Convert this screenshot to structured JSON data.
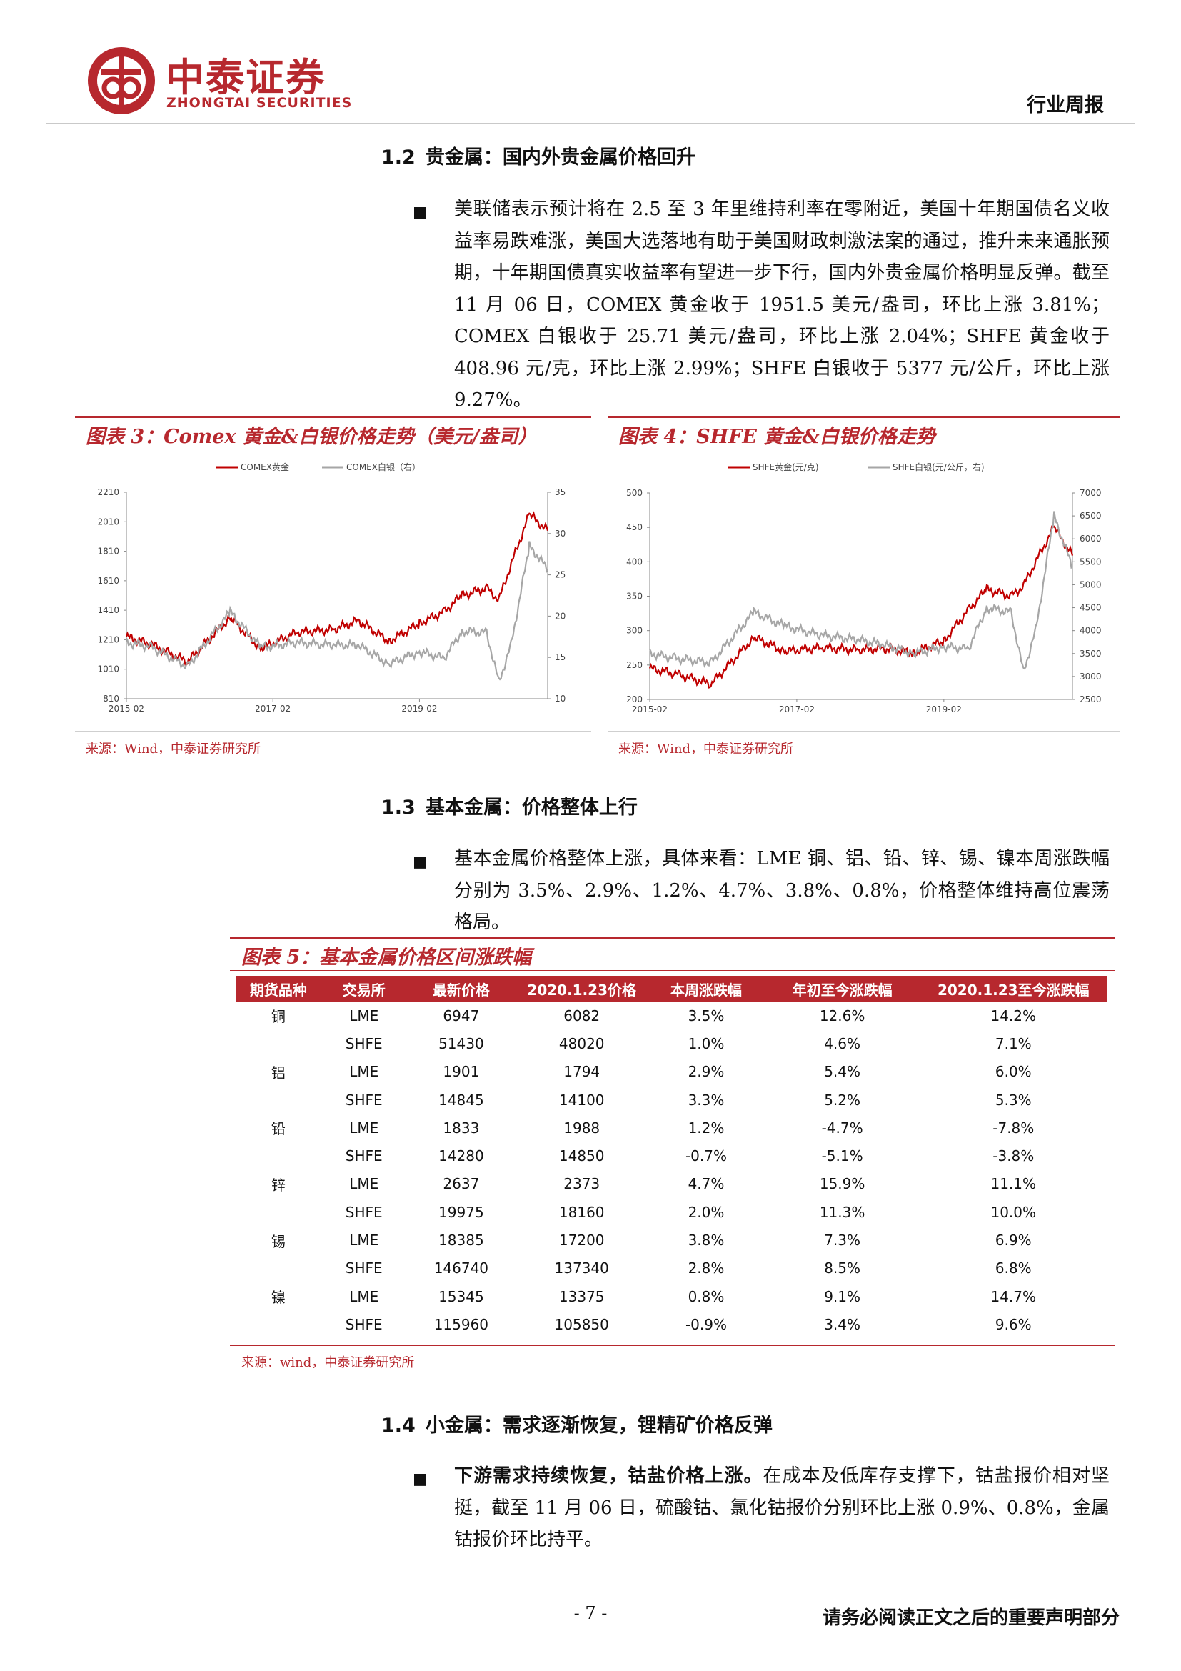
{
  "header": {
    "brand_cn": "中泰证券",
    "brand_en": "ZHONGTAI SECURITIES",
    "doc_type": "行业周报",
    "brand_color": "#b7282e"
  },
  "section_1_2": {
    "number": "1.2",
    "title": "贵金属：国内外贵金属价格回升",
    "paragraph": "美联储表示预计将在 2.5 至 3 年里维持利率在零附近，美国十年期国债名义收益率易跌难涨，美国大选落地有助于美国财政刺激法案的通过，推升未来通胀预期，十年期国债真实收益率有望进一步下行，国内外贵金属价格明显反弹。截至 11 月 06 日，COMEX 黄金收于 1951.5 美元/盎司，环比上涨 3.81%；COMEX 白银收于 25.71 美元/盎司，环比上涨 2.04%；SHFE 黄金收于 408.96 元/克，环比上涨 2.99%；SHFE 白银收于 5377 元/公斤，环比上涨 9.27%。"
  },
  "figure3": {
    "title": "图表 3：Comex 黄金&白银价格走势（美元/盎司）",
    "source": "来源：Wind，中泰证券研究所"
  },
  "figure4": {
    "title": "图表 4：SHFE 黄金&白银价格走势",
    "source": "来源：Wind，中泰证券研究所"
  },
  "chart_data": [
    {
      "type": "line",
      "legend_placement": "top",
      "grid": false,
      "x_ticks": [
        "2015-02",
        "2017-02",
        "2019-02"
      ],
      "x_range": [
        "2015-02",
        "2020-11"
      ],
      "y_left_ticks": [
        810,
        1010,
        1210,
        1410,
        1610,
        1810,
        2010,
        2210
      ],
      "y_left_range": [
        810,
        2210
      ],
      "y_right_ticks": [
        10,
        15,
        20,
        25,
        30,
        35
      ],
      "y_right_range": [
        10,
        35
      ],
      "series": [
        {
          "name": "COMEX黄金",
          "axis": "left",
          "color": "#c00000",
          "x": [
            "2015-02",
            "2015-06",
            "2015-12",
            "2016-07",
            "2016-12",
            "2017-06",
            "2017-12",
            "2018-04",
            "2018-09",
            "2019-02",
            "2019-06",
            "2019-09",
            "2020-01",
            "2020-03",
            "2020-05",
            "2020-08",
            "2020-11"
          ],
          "values": [
            1230,
            1180,
            1060,
            1360,
            1150,
            1260,
            1280,
            1340,
            1200,
            1320,
            1400,
            1510,
            1560,
            1480,
            1720,
            2060,
            1950
          ]
        },
        {
          "name": "COMEX白银（右）",
          "axis": "right",
          "color": "#a6a6a6",
          "x": [
            "2015-02",
            "2015-06",
            "2015-12",
            "2016-07",
            "2016-12",
            "2017-06",
            "2017-12",
            "2018-04",
            "2018-09",
            "2019-02",
            "2019-06",
            "2019-09",
            "2020-01",
            "2020-03",
            "2020-05",
            "2020-08",
            "2020-11"
          ],
          "values": [
            16.8,
            16.3,
            13.9,
            20.5,
            16.2,
            16.8,
            16.5,
            16.5,
            14.2,
            15.7,
            14.9,
            18.2,
            18.0,
            12.0,
            16.5,
            28.5,
            25.7
          ]
        }
      ]
    },
    {
      "type": "line",
      "legend_placement": "top",
      "grid": false,
      "x_ticks": [
        "2015-02",
        "2017-02",
        "2019-02"
      ],
      "x_range": [
        "2015-02",
        "2020-11"
      ],
      "y_left_ticks": [
        200,
        250,
        300,
        350,
        400,
        450,
        500
      ],
      "y_left_range": [
        200,
        500
      ],
      "y_right_ticks": [
        2500,
        3000,
        3500,
        4000,
        4500,
        5000,
        5500,
        6000,
        6500,
        7000
      ],
      "y_right_range": [
        2500,
        7000
      ],
      "series": [
        {
          "name": "SHFE黄金(元/克)",
          "axis": "left",
          "color": "#c00000",
          "x": [
            "2015-02",
            "2015-06",
            "2015-12",
            "2016-07",
            "2016-12",
            "2017-06",
            "2017-12",
            "2018-04",
            "2018-09",
            "2019-02",
            "2019-06",
            "2019-09",
            "2020-01",
            "2020-03",
            "2020-05",
            "2020-08",
            "2020-11"
          ],
          "values": [
            245,
            238,
            222,
            290,
            270,
            275,
            272,
            274,
            268,
            285,
            330,
            360,
            350,
            365,
            400,
            450,
            409
          ]
        },
        {
          "name": "SHFE白银(元/公斤，右)",
          "axis": "right",
          "color": "#a6a6a6",
          "x": [
            "2015-02",
            "2015-06",
            "2015-12",
            "2016-07",
            "2016-12",
            "2017-06",
            "2017-12",
            "2018-04",
            "2018-09",
            "2019-02",
            "2019-06",
            "2019-09",
            "2020-01",
            "2020-03",
            "2020-05",
            "2020-08",
            "2020-11"
          ],
          "values": [
            3500,
            3400,
            3300,
            4400,
            4100,
            3900,
            3800,
            3700,
            3500,
            3650,
            3600,
            4500,
            4400,
            3100,
            4000,
            6500,
            5377
          ]
        }
      ]
    }
  ],
  "section_1_3": {
    "number": "1.3",
    "title": "基本金属：价格整体上行",
    "paragraph": "基本金属价格整体上涨，具体来看：LME 铜、铝、铅、锌、锡、镍本周涨跌幅分别为 3.5%、2.9%、1.2%、4.7%、3.8%、0.8%，价格整体维持高位震荡格局。"
  },
  "table5": {
    "title": "图表 5：基本金属价格区间涨跌幅",
    "headers": [
      "期货品种",
      "交易所",
      "最新价格",
      "2020.1.23价格",
      "本周涨跌幅",
      "年初至今涨跌幅",
      "2020.1.23至今涨跌幅"
    ],
    "rows": [
      [
        "铜",
        "LME",
        "6947",
        "6082",
        "3.5%",
        "12.6%",
        "14.2%"
      ],
      [
        "",
        "SHFE",
        "51430",
        "48020",
        "1.0%",
        "4.6%",
        "7.1%"
      ],
      [
        "铝",
        "LME",
        "1901",
        "1794",
        "2.9%",
        "5.4%",
        "6.0%"
      ],
      [
        "",
        "SHFE",
        "14845",
        "14100",
        "3.3%",
        "5.2%",
        "5.3%"
      ],
      [
        "铅",
        "LME",
        "1833",
        "1988",
        "1.2%",
        "-4.7%",
        "-7.8%"
      ],
      [
        "",
        "SHFE",
        "14280",
        "14850",
        "-0.7%",
        "-5.1%",
        "-3.8%"
      ],
      [
        "锌",
        "LME",
        "2637",
        "2373",
        "4.7%",
        "15.9%",
        "11.1%"
      ],
      [
        "",
        "SHFE",
        "19975",
        "18160",
        "2.0%",
        "11.3%",
        "10.0%"
      ],
      [
        "锡",
        "LME",
        "18385",
        "17200",
        "3.8%",
        "7.3%",
        "6.9%"
      ],
      [
        "",
        "SHFE",
        "146740",
        "137340",
        "2.8%",
        "8.5%",
        "6.8%"
      ],
      [
        "镍",
        "LME",
        "15345",
        "13375",
        "0.8%",
        "9.1%",
        "14.7%"
      ],
      [
        "",
        "SHFE",
        "115960",
        "105850",
        "-0.9%",
        "3.4%",
        "9.6%"
      ]
    ],
    "source": "来源：wind，中泰证券研究所"
  },
  "section_1_4": {
    "number": "1.4",
    "title": "小金属：需求逐渐恢复，锂精矿价格反弹",
    "lead_bold": "下游需求持续恢复，钴盐价格上涨。",
    "paragraph": "在成本及低库存支撑下，钴盐报价相对坚挺，截至 11 月 06 日，硫酸钴、氯化钴报价分别环比上涨 0.9%、0.8%，金属钴报价环比持平。"
  },
  "footer": {
    "page": "- 7 -",
    "disclaimer": "请务必阅读正文之后的重要声明部分"
  }
}
